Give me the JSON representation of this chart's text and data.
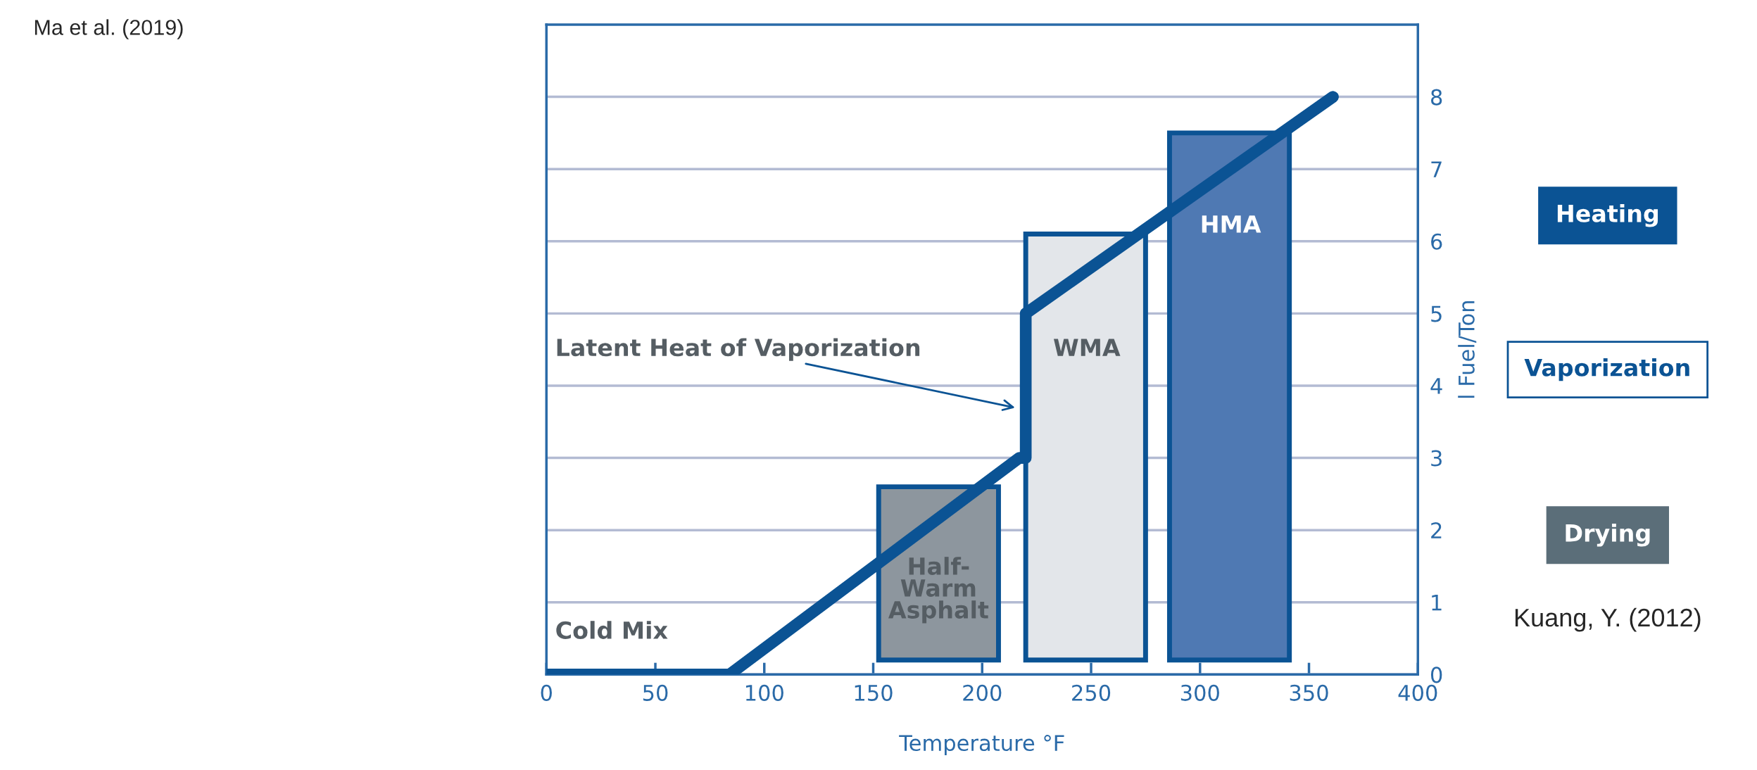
{
  "chart_data": {
    "type": "line",
    "xlabel": "Temperature °F",
    "ylabel": "l Fuel/Ton",
    "xlim": [
      0,
      400
    ],
    "ylim": [
      0,
      9
    ],
    "xticks": [
      0,
      50,
      100,
      150,
      200,
      250,
      300,
      350,
      400
    ],
    "yticks": [
      0,
      1,
      2,
      3,
      4,
      5,
      6,
      7,
      8
    ],
    "grid": "y",
    "legend": false,
    "marker": "none",
    "line_style": "solid",
    "series": [
      {
        "type": "bar",
        "color": "#8d969e",
        "x": [
          180
        ],
        "base": [
          0.2
        ],
        "values": [
          2.4
        ]
      },
      {
        "type": "bar",
        "color": "#e3e6ea",
        "x": [
          247.5
        ],
        "base": [
          0.2
        ],
        "values": [
          5.9
        ]
      },
      {
        "type": "bar",
        "color": "#4f79b3",
        "x": [
          313.5
        ],
        "base": [
          0.2
        ],
        "values": [
          7.3
        ]
      },
      {
        "color": "#0b5394",
        "x": [
          0,
          84,
          217,
          220,
          220,
          361
        ],
        "values": [
          0,
          0,
          3,
          3,
          5,
          8
        ]
      }
    ],
    "annotations": [
      "Ma et al. (2019)",
      "Heating",
      "Vaporization",
      "Drying",
      "Kuang, Y. (2012)",
      "Cold Mix",
      "Half-\nWarm\nAsphalt",
      "WMA",
      "HMA",
      "Latent Heat of Vaporization"
    ]
  }
}
